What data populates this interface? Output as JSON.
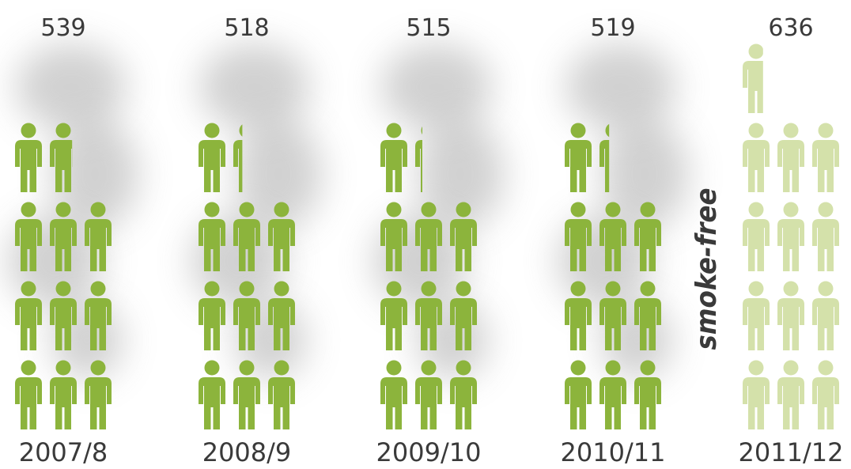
{
  "chart_data": {
    "type": "pictogram",
    "categories": [
      "2007/8",
      "2008/9",
      "2009/10",
      "2010/11",
      "2011/12"
    ],
    "values": [
      539,
      518,
      515,
      519,
      636
    ],
    "colors": [
      "#8cb43c",
      "#8cb43c",
      "#8cb43c",
      "#8cb43c",
      "#d4e1aa"
    ],
    "annotation": "smoke-free"
  }
}
